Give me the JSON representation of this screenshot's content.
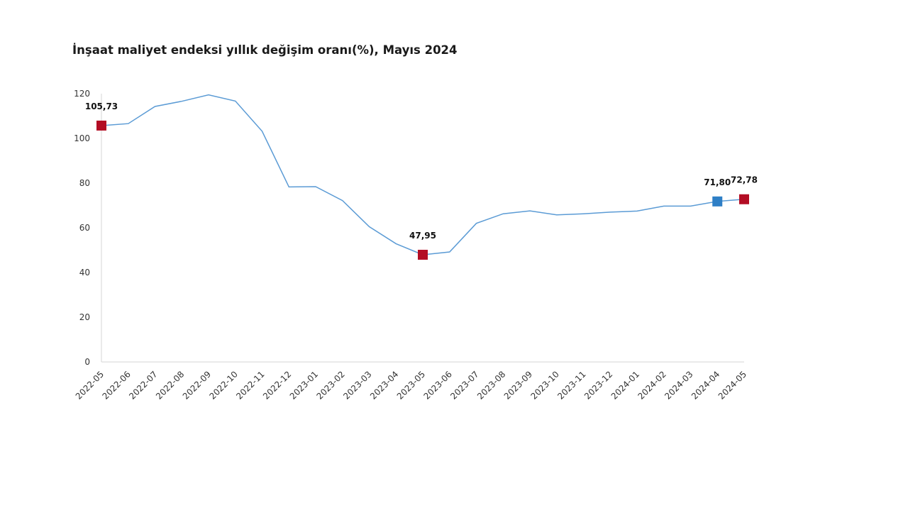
{
  "chart_data": {
    "type": "line",
    "title": "İnşaat maliyet endeksi yıllık değişim oranı(%), Mayıs 2024",
    "xlabel": "",
    "ylabel": "",
    "ylim": [
      0,
      120
    ],
    "yticks": [
      "0",
      "20",
      "40",
      "60",
      "80",
      "100",
      "120"
    ],
    "grid": false,
    "legend": "none",
    "categories": [
      "2022-05",
      "2022-06",
      "2022-07",
      "2022-08",
      "2022-09",
      "2022-10",
      "2022-11",
      "2022-12",
      "2023-01",
      "2023-02",
      "2023-03",
      "2023-04",
      "2023-05",
      "2023-06",
      "2023-07",
      "2023-08",
      "2023-09",
      "2023-10",
      "2023-11",
      "2023-12",
      "2024-01",
      "2024-02",
      "2024-03",
      "2024-04",
      "2024-05"
    ],
    "series": [
      {
        "values": [
          105.73,
          106.6,
          114.3,
          116.6,
          119.5,
          116.7,
          103.2,
          78.3,
          78.4,
          72.2,
          60.5,
          52.9,
          47.95,
          49.2,
          62.0,
          66.3,
          67.6,
          65.8,
          66.3,
          67.0,
          67.5,
          69.7,
          69.7,
          71.8,
          72.78
        ],
        "color": "#5b9bd5"
      }
    ],
    "markers": [
      {
        "index": 0,
        "label": "105,73",
        "color": "#b30d24"
      },
      {
        "index": 12,
        "label": "47,95",
        "color": "#b30d24"
      },
      {
        "index": 23,
        "label": "71,80",
        "color": "#2e7fc6"
      },
      {
        "index": 24,
        "label": "72,78",
        "color": "#b30d24"
      }
    ]
  }
}
